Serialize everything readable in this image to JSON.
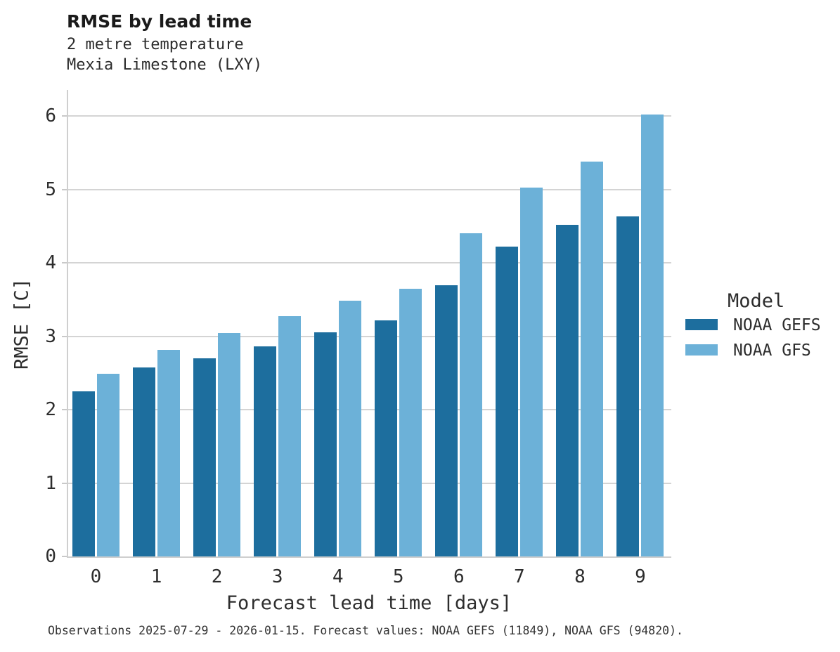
{
  "header": {
    "title": "RMSE by lead time",
    "subtitle1": "2 metre temperature",
    "subtitle2": "Mexia Limestone (LXY)"
  },
  "axes": {
    "x_label": "Forecast lead time [days]",
    "y_label": "RMSE [C]",
    "x_ticks": [
      "0",
      "1",
      "2",
      "3",
      "4",
      "5",
      "6",
      "7",
      "8",
      "9"
    ],
    "y_ticks": [
      "0",
      "1",
      "2",
      "3",
      "4",
      "5",
      "6"
    ]
  },
  "legend": {
    "title": "Model",
    "items": [
      {
        "label": "NOAA GEFS",
        "color": "#1d6e9e"
      },
      {
        "label": "NOAA GFS",
        "color": "#6cb1d8"
      }
    ]
  },
  "caption": "Observations 2025-07-29 - 2026-01-15. Forecast values: NOAA GEFS (11849), NOAA GFS (94820).",
  "colors": {
    "gefs_dark_blue": "#1d6e9e",
    "gfs_light_blue": "#6cb1d8",
    "gridline_gray": "#d4d4d4",
    "spine_gray": "#cfcfcf",
    "text_dark": "#2d2d2d"
  },
  "chart_data": {
    "type": "bar",
    "title": "RMSE by lead time",
    "subtitle": [
      "2 metre temperature",
      "Mexia Limestone (LXY)"
    ],
    "xlabel": "Forecast lead time [days]",
    "ylabel": "RMSE [C]",
    "categories": [
      0,
      1,
      2,
      3,
      4,
      5,
      6,
      7,
      8,
      9
    ],
    "series": [
      {
        "name": "NOAA GEFS",
        "color": "#1d6e9e",
        "values": [
          2.25,
          2.57,
          2.7,
          2.86,
          3.05,
          3.22,
          3.69,
          4.22,
          4.52,
          4.63
        ]
      },
      {
        "name": "NOAA GFS",
        "color": "#6cb1d8",
        "values": [
          2.49,
          2.81,
          3.04,
          3.27,
          3.48,
          3.65,
          4.4,
          5.02,
          5.38,
          6.02
        ]
      }
    ],
    "ylim": [
      0,
      6.34
    ],
    "yticks": [
      0,
      1,
      2,
      3,
      4,
      5,
      6
    ],
    "grid": "horizontal",
    "legend_title": "Model",
    "legend_position": "right"
  }
}
